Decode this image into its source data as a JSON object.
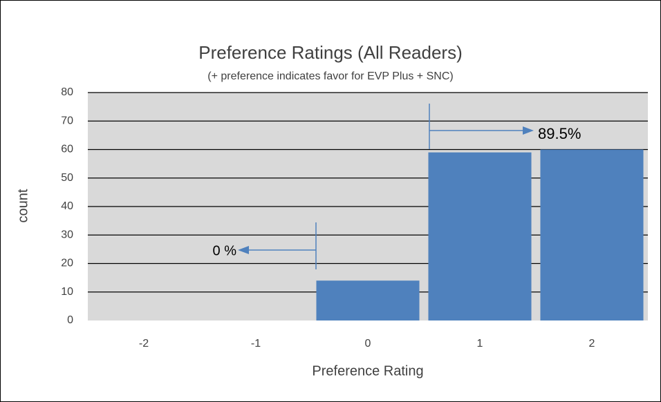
{
  "chart_data": {
    "type": "bar",
    "title": "Preference Ratings (All Readers)",
    "subtitle": "(+ preference indicates favor for EVP Plus + SNC)",
    "x_label": "Preference Rating",
    "y_label": "count",
    "categories": [
      "-2",
      "-1",
      "0",
      "1",
      "2"
    ],
    "values": [
      0,
      0,
      14,
      59,
      60
    ],
    "color": "#4f81bd",
    "ylim": [
      0,
      80
    ],
    "yticks": [
      0,
      10,
      20,
      30,
      40,
      50,
      60,
      70,
      80
    ],
    "grid": true,
    "annotations": [
      "0 %",
      "89.5%"
    ]
  }
}
